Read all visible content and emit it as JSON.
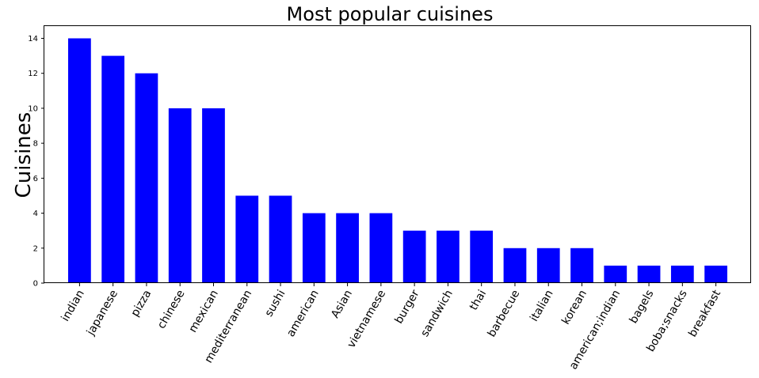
{
  "chart_data": {
    "type": "bar",
    "title": "Most popular cuisines",
    "xlabel": "",
    "ylabel": "Cuisines",
    "categories": [
      "indian",
      "japanese",
      "pizza",
      "chinese",
      "mexican",
      "mediterranean",
      "sushi",
      "american",
      "Asian",
      "vietnamese",
      "burger",
      "sandwich",
      "thai",
      "barbecue",
      "italian",
      "korean",
      "american;indian",
      "bagels",
      "boba;snacks",
      "breakfast"
    ],
    "values": [
      14,
      13,
      12,
      10,
      10,
      5,
      5,
      4,
      4,
      4,
      3,
      3,
      3,
      2,
      2,
      2,
      1,
      1,
      1,
      1
    ],
    "ylim": [
      0,
      14.7
    ],
    "yticks": [
      0,
      2,
      4,
      6,
      8,
      10,
      12,
      14
    ],
    "bar_color": "#0000ff",
    "grid": false,
    "legend": "none"
  }
}
